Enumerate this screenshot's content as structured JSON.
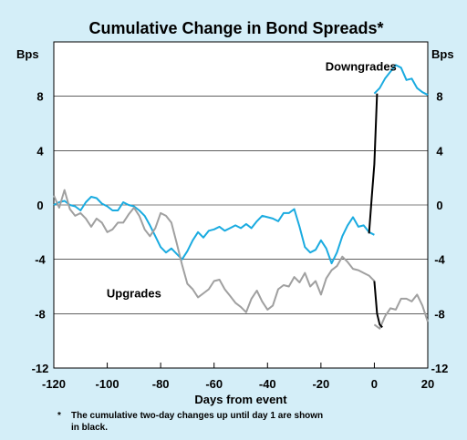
{
  "chart_data": {
    "type": "line",
    "title": "Cumulative Change in Bond Spreads*",
    "ylabel_left": "Bps",
    "ylabel_right": "Bps",
    "xlabel": "Days from event",
    "xlim": [
      -120,
      20
    ],
    "ylim": [
      -12,
      12
    ],
    "x_ticks": [
      -120,
      -100,
      -80,
      -60,
      -40,
      -20,
      0,
      20
    ],
    "y_ticks": [
      -12,
      -8,
      -4,
      0,
      4,
      8
    ],
    "footnote_marker": "*",
    "footnote_lines": [
      "The cumulative two-day changes up until day 1 are shown",
      "in black."
    ],
    "colors": {
      "downgrades": "#1aabe0",
      "upgrades": "#a0a0a0",
      "two_day": "#000000",
      "background": "#d4eef8",
      "plot_area": "#ffffff"
    },
    "series": [
      {
        "name": "Downgrades",
        "color": "#1aabe0",
        "points": [
          [
            -120,
            0.0
          ],
          [
            -118,
            0.2
          ],
          [
            -116,
            0.3
          ],
          [
            -114,
            0.0
          ],
          [
            -112,
            -0.1
          ],
          [
            -110,
            -0.4
          ],
          [
            -108,
            0.2
          ],
          [
            -106,
            0.6
          ],
          [
            -104,
            0.5
          ],
          [
            -102,
            0.1
          ],
          [
            -100,
            -0.1
          ],
          [
            -98,
            -0.4
          ],
          [
            -96,
            -0.4
          ],
          [
            -94,
            0.2
          ],
          [
            -92,
            0.0
          ],
          [
            -90,
            -0.1
          ],
          [
            -88,
            -0.4
          ],
          [
            -86,
            -0.8
          ],
          [
            -84,
            -1.5
          ],
          [
            -82,
            -2.3
          ],
          [
            -80,
            -3.1
          ],
          [
            -78,
            -3.5
          ],
          [
            -76,
            -3.2
          ],
          [
            -74,
            -3.6
          ],
          [
            -72,
            -4.0
          ],
          [
            -70,
            -3.4
          ],
          [
            -68,
            -2.6
          ],
          [
            -66,
            -2.0
          ],
          [
            -64,
            -2.4
          ],
          [
            -62,
            -1.9
          ],
          [
            -60,
            -1.8
          ],
          [
            -58,
            -1.6
          ],
          [
            -56,
            -1.9
          ],
          [
            -54,
            -1.7
          ],
          [
            -52,
            -1.5
          ],
          [
            -50,
            -1.7
          ],
          [
            -48,
            -1.4
          ],
          [
            -46,
            -1.7
          ],
          [
            -44,
            -1.2
          ],
          [
            -42,
            -0.8
          ],
          [
            -40,
            -0.9
          ],
          [
            -38,
            -1.0
          ],
          [
            -36,
            -1.2
          ],
          [
            -34,
            -0.6
          ],
          [
            -32,
            -0.6
          ],
          [
            -30,
            -0.3
          ],
          [
            -28,
            -1.6
          ],
          [
            -26,
            -3.1
          ],
          [
            -24,
            -3.5
          ],
          [
            -22,
            -3.3
          ],
          [
            -20,
            -2.6
          ],
          [
            -18,
            -3.2
          ],
          [
            -16,
            -4.3
          ],
          [
            -14,
            -3.5
          ],
          [
            -12,
            -2.3
          ],
          [
            -10,
            -1.5
          ],
          [
            -8,
            -0.9
          ],
          [
            -6,
            -1.6
          ],
          [
            -4,
            -1.5
          ],
          [
            -2,
            -2.0
          ],
          [
            0,
            -2.2
          ]
        ]
      },
      {
        "name": "Downgrades",
        "color": "#1aabe0",
        "points": [
          [
            0,
            8.2
          ],
          [
            2,
            8.6
          ],
          [
            4,
            9.3
          ],
          [
            6,
            9.8
          ],
          [
            8,
            10.3
          ],
          [
            10,
            10.1
          ],
          [
            12,
            9.2
          ],
          [
            14,
            9.3
          ],
          [
            16,
            8.6
          ],
          [
            18,
            8.3
          ],
          [
            20,
            8.1
          ]
        ]
      },
      {
        "name": "",
        "color": "#000000",
        "points": [
          [
            -2,
            -2.1
          ],
          [
            -1,
            0.5
          ],
          [
            0,
            3.0
          ],
          [
            1,
            8.2
          ]
        ]
      },
      {
        "name": "Upgrades",
        "color": "#a0a0a0",
        "points": [
          [
            -120,
            0.7
          ],
          [
            -118,
            -0.2
          ],
          [
            -116,
            1.1
          ],
          [
            -114,
            -0.3
          ],
          [
            -112,
            -0.8
          ],
          [
            -110,
            -0.6
          ],
          [
            -108,
            -1.0
          ],
          [
            -106,
            -1.6
          ],
          [
            -104,
            -1.0
          ],
          [
            -102,
            -1.3
          ],
          [
            -100,
            -2.0
          ],
          [
            -98,
            -1.8
          ],
          [
            -96,
            -1.3
          ],
          [
            -94,
            -1.3
          ],
          [
            -92,
            -0.7
          ],
          [
            -90,
            -0.2
          ],
          [
            -88,
            -0.8
          ],
          [
            -86,
            -1.8
          ],
          [
            -84,
            -2.3
          ],
          [
            -82,
            -1.7
          ],
          [
            -80,
            -0.6
          ],
          [
            -78,
            -0.8
          ],
          [
            -76,
            -1.3
          ],
          [
            -74,
            -2.8
          ],
          [
            -72,
            -4.4
          ],
          [
            -70,
            -5.8
          ],
          [
            -68,
            -6.2
          ],
          [
            -66,
            -6.8
          ],
          [
            -64,
            -6.5
          ],
          [
            -62,
            -6.2
          ],
          [
            -60,
            -5.6
          ],
          [
            -58,
            -5.5
          ],
          [
            -56,
            -6.2
          ],
          [
            -54,
            -6.7
          ],
          [
            -52,
            -7.2
          ],
          [
            -50,
            -7.5
          ],
          [
            -48,
            -7.9
          ],
          [
            -46,
            -6.9
          ],
          [
            -44,
            -6.3
          ],
          [
            -42,
            -7.1
          ],
          [
            -40,
            -7.7
          ],
          [
            -38,
            -7.4
          ],
          [
            -36,
            -6.2
          ],
          [
            -34,
            -5.9
          ],
          [
            -32,
            -6.0
          ],
          [
            -30,
            -5.3
          ],
          [
            -28,
            -5.7
          ],
          [
            -26,
            -5.0
          ],
          [
            -24,
            -6.0
          ],
          [
            -22,
            -5.6
          ],
          [
            -20,
            -6.6
          ],
          [
            -18,
            -5.4
          ],
          [
            -16,
            -4.8
          ],
          [
            -14,
            -4.5
          ],
          [
            -12,
            -3.8
          ],
          [
            -10,
            -4.2
          ],
          [
            -8,
            -4.7
          ],
          [
            -6,
            -4.8
          ],
          [
            -4,
            -5.0
          ],
          [
            -2,
            -5.2
          ],
          [
            0,
            -5.6
          ]
        ]
      },
      {
        "name": "",
        "color": "#a0a0a0",
        "points": [
          [
            0,
            -8.8
          ],
          [
            2,
            -9.1
          ],
          [
            4,
            -8.2
          ],
          [
            6,
            -7.6
          ],
          [
            8,
            -7.7
          ],
          [
            10,
            -6.9
          ],
          [
            12,
            -6.9
          ],
          [
            14,
            -7.1
          ],
          [
            16,
            -6.6
          ],
          [
            18,
            -7.4
          ],
          [
            20,
            -8.6
          ]
        ]
      },
      {
        "name": "",
        "color": "#000000",
        "points": [
          [
            0,
            -5.6
          ],
          [
            1,
            -8.0
          ],
          [
            2,
            -8.8
          ],
          [
            3,
            -9.0
          ]
        ]
      }
    ],
    "annotations": [
      {
        "text": "Downgrades",
        "x": -5,
        "y": 9.9
      },
      {
        "text": "Upgrades",
        "x": -90,
        "y": -6.8
      }
    ]
  }
}
